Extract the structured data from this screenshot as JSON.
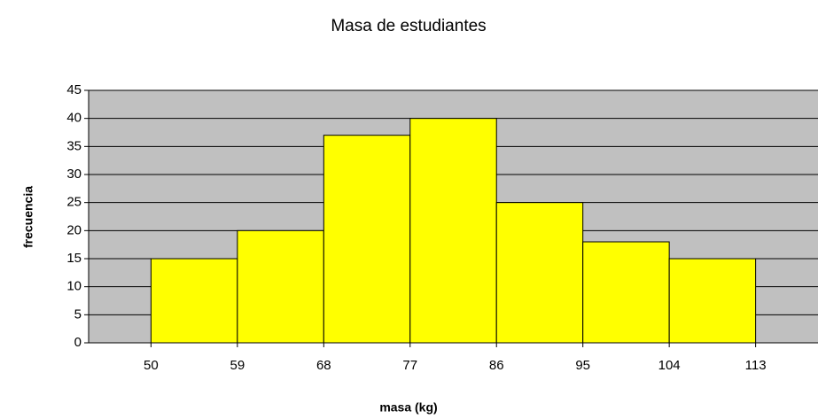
{
  "chart_data": {
    "type": "histogram",
    "title": "Masa de estudiantes",
    "xlabel": "masa (kg)",
    "ylabel": "frecuencia",
    "bins": [
      50,
      59,
      68,
      77,
      86,
      95,
      104,
      113
    ],
    "counts": [
      15,
      20,
      37,
      40,
      25,
      18,
      15
    ],
    "color": "#ffff00",
    "plot_background": "#c0c0c0",
    "xlim": [
      43.5,
      119.5
    ],
    "xticks": [
      50,
      59,
      68,
      77,
      86,
      95,
      104,
      113
    ],
    "ylim": [
      0,
      45
    ],
    "yticks": [
      0,
      5,
      10,
      15,
      20,
      25,
      30,
      35,
      40,
      45
    ],
    "grid": true
  }
}
